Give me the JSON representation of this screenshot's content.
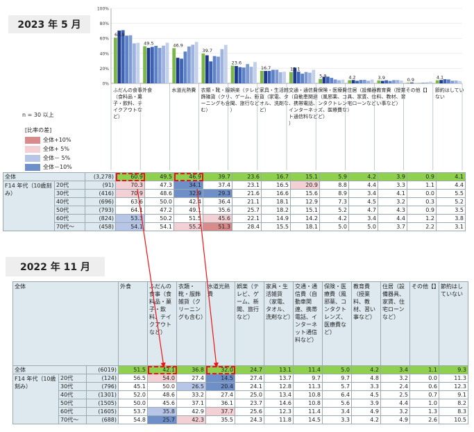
{
  "top": {
    "title": "2023 年 5 月",
    "note": "n = 30 以上",
    "legend_title": "[比率の差]",
    "legend": [
      {
        "label": "全体+10%",
        "color": "#d98a8a"
      },
      {
        "label": "全体+ 5%",
        "color": "#f2d0d4"
      },
      {
        "label": "全体－ 5%",
        "color": "#b7c6e6"
      },
      {
        "label": "全体－10%",
        "color": "#6f8fc8"
      }
    ]
  },
  "bottom": {
    "title": "2022 年 11 月"
  },
  "chart_data": [
    {
      "type": "bar",
      "title": "2023 年 5 月",
      "ylim": [
        0,
        100
      ],
      "yticks": [
        "0%",
        "20%",
        "40%",
        "60%",
        "80%",
        "100%"
      ],
      "categories": [
        "ふだんの食事（食料品・菓子・飲料、テイクアウトなど）",
        "外食",
        "水道光熱費",
        "衣類・靴・服飾雑貨（クリーニングも含む）",
        "娯楽（テレビ、ゲーム、新聞、旅行など）",
        "家具・生活雑貨（家電、タオル、洗剤など）",
        "交通・通信費（自動車関連、携帯電話、インターネット通信料など）",
        "保険・医療費（風邪薬、コンタクトレンズ、医療費など）",
        "住居（設備器具、家賃、住宅ローンなど）",
        "教育費（授業料、教材、習い事など）",
        "その他【】",
        "節約はしていない"
      ],
      "total_values": [
        60.9,
        49.5,
        46.9,
        39.7,
        23.6,
        16.7,
        15.1,
        5.9,
        4.2,
        3.9,
        0.9,
        4.1
      ],
      "series": [
        {
          "name": "全体",
          "values": [
            60.9,
            49.5,
            46.9,
            39.7,
            23.6,
            16.7,
            15.1,
            5.9,
            4.2,
            3.9,
            0.9,
            4.1
          ]
        },
        {
          "name": "20代",
          "values": [
            70.3,
            47.3,
            34.1,
            37.4,
            23.1,
            16.5,
            20.9,
            8.8,
            4.4,
            3.3,
            1.1,
            4.4
          ]
        },
        {
          "name": "30代",
          "values": [
            70.9,
            48.6,
            32.9,
            29.3,
            21.6,
            16.6,
            15.6,
            8.9,
            3.4,
            4.1,
            0.0,
            5.5
          ]
        },
        {
          "name": "40代",
          "values": [
            63.6,
            50.0,
            42.4,
            36.4,
            21.1,
            18.1,
            12.9,
            7.3,
            4.5,
            3.2,
            0.3,
            5.2
          ]
        },
        {
          "name": "50代",
          "values": [
            64.1,
            47.2,
            49.1,
            35.6,
            25.7,
            18.2,
            15.1,
            5.2,
            4.7,
            4.3,
            0.9,
            3.5
          ]
        },
        {
          "name": "60代",
          "values": [
            53.3,
            50.2,
            51.5,
            45.6,
            22.1,
            14.9,
            14.2,
            4.2,
            3.4,
            4.4,
            1.2,
            3.8
          ]
        },
        {
          "name": "70代～",
          "values": [
            54.1,
            54.1,
            55.2,
            51.3,
            28.4,
            15.5,
            18.1,
            5.0,
            5.0,
            3.7,
            2.2,
            3.1
          ]
        }
      ]
    }
  ],
  "table_2023": {
    "total_label": "全体",
    "total_row_label": "全体",
    "group_label": "F14 年代（10歳刻み）",
    "total_n": "(3,278)",
    "total_values": [
      "60.9",
      "49.5",
      "46.9",
      "39.7",
      "23.6",
      "16.7",
      "15.1",
      "5.9",
      "4.2",
      "3.9",
      "0.9",
      "4.1"
    ],
    "rows": [
      {
        "age": "20代",
        "n": "(91)",
        "values": [
          "70.3",
          "47.3",
          "34.1",
          "37.4",
          "23.1",
          "16.5",
          "20.9",
          "8.8",
          "4.4",
          "3.3",
          "1.1",
          "4.4"
        ]
      },
      {
        "age": "30代",
        "n": "(416)",
        "values": [
          "70.9",
          "48.6",
          "32.9",
          "29.3",
          "21.6",
          "16.6",
          "15.6",
          "8.9",
          "3.4",
          "4.1",
          "0.0",
          "5.5"
        ]
      },
      {
        "age": "40代",
        "n": "(696)",
        "values": [
          "63.6",
          "50.0",
          "42.4",
          "36.4",
          "21.1",
          "18.1",
          "12.9",
          "7.3",
          "4.5",
          "3.2",
          "0.3",
          "5.2"
        ]
      },
      {
        "age": "50代",
        "n": "(793)",
        "values": [
          "64.1",
          "47.2",
          "49.1",
          "35.6",
          "25.7",
          "18.2",
          "15.1",
          "5.2",
          "4.7",
          "4.3",
          "0.9",
          "3.5"
        ]
      },
      {
        "age": "60代",
        "n": "(824)",
        "values": [
          "53.3",
          "50.2",
          "51.5",
          "45.6",
          "22.1",
          "14.9",
          "14.2",
          "4.2",
          "3.4",
          "4.4",
          "1.2",
          "3.8"
        ]
      },
      {
        "age": "70代～",
        "n": "(458)",
        "values": [
          "54.1",
          "54.1",
          "55.2",
          "51.3",
          "28.4",
          "15.5",
          "18.1",
          "5.0",
          "5.0",
          "3.7",
          "2.2",
          "3.1"
        ]
      }
    ],
    "highlights": [
      [
        0,
        0,
        "#f2d0d4"
      ],
      [
        0,
        2,
        "#6f8fc8"
      ],
      [
        0,
        6,
        "#f2d0d4"
      ],
      [
        1,
        0,
        "#f2d0d4"
      ],
      [
        1,
        2,
        "#6f8fc8"
      ],
      [
        1,
        3,
        "#6f8fc8"
      ],
      [
        4,
        0,
        "#b7c6e6"
      ],
      [
        4,
        3,
        "#f2d0d4"
      ],
      [
        5,
        0,
        "#b7c6e6"
      ],
      [
        5,
        2,
        "#f2d0d4"
      ],
      [
        5,
        3,
        "#d98a8a"
      ]
    ]
  },
  "table_2022": {
    "total_label": "全体",
    "total_row_label": "全体",
    "group_label": "F14 年代（10歳刻み）",
    "headers": [
      "外食",
      "ふだんの食事（食料品・菓子・飲料、テイクアウトなど）",
      "衣類・靴・服飾雑貨（クリーニングも含む）",
      "水道光熱費",
      "娯楽（テレビ、ゲーム、新聞、旅行など）",
      "家具・生活雑貨（家電、タオル、洗剤など）",
      "交通・通信費（自動車関連、携帯電話、インターネット通信料など）",
      "保険・医療費（風邪薬、コンタクトレンズ、医療費など）",
      "教育費（授業料、教材、習い事など）",
      "住居（設備器具、家賃、住宅ローンなど）",
      "その他【】",
      "節約はしていない"
    ],
    "total_n": "(6019)",
    "total_values": [
      "51.5",
      "42.1",
      "36.8",
      "32.0",
      "24.7",
      "13.1",
      "11.4",
      "5.0",
      "4.2",
      "3.4",
      "1.1",
      "9.3"
    ],
    "rows": [
      {
        "age": "20代",
        "n": "(124)",
        "values": [
          "56.5",
          "54.0",
          "27.4",
          "14.5",
          "27.4",
          "13.7",
          "9.7",
          "9.7",
          "4.8",
          "3.2",
          "0.0",
          "11.3"
        ]
      },
      {
        "age": "30代",
        "n": "(796)",
        "values": [
          "45.1",
          "50.0",
          "26.5",
          "20.4",
          "24.1",
          "12.8",
          "11.3",
          "5.7",
          "3.3",
          "2.4",
          "0.6",
          "12.3"
        ]
      },
      {
        "age": "40代",
        "n": "(1301)",
        "values": [
          "52.0",
          "48.6",
          "33.2",
          "27.4",
          "25.0",
          "13.4",
          "10.8",
          "6.4",
          "4.5",
          "2.5",
          "0.7",
          "9.1"
        ]
      },
      {
        "age": "50代",
        "n": "(1505)",
        "values": [
          "50.0",
          "45.6",
          "37.1",
          "36.1",
          "23.7",
          "14.6",
          "10.8",
          "5.6",
          "3.9",
          "4.4",
          "1.0",
          "8.2"
        ]
      },
      {
        "age": "60代",
        "n": "(1605)",
        "values": [
          "53.7",
          "35.8",
          "42.9",
          "37.7",
          "25.6",
          "12.3",
          "11.4",
          "3.4",
          "4.9",
          "3.2",
          "1.3",
          "8.3"
        ]
      },
      {
        "age": "70代～",
        "n": "(688)",
        "values": [
          "54.8",
          "25.7",
          "42.3",
          "35.5",
          "24.3",
          "11.8",
          "14.5",
          "3.3",
          "4.2",
          "4.9",
          "2.6",
          "10.5"
        ]
      }
    ],
    "highlights": [
      [
        0,
        1,
        "#f2d0d4"
      ],
      [
        0,
        3,
        "#6f8fc8"
      ],
      [
        1,
        2,
        "#b7c6e6"
      ],
      [
        1,
        3,
        "#6f8fc8"
      ],
      [
        4,
        1,
        "#b7c6e6"
      ],
      [
        4,
        3,
        "#f2d0d4"
      ],
      [
        5,
        1,
        "#6f8fc8"
      ],
      [
        5,
        2,
        "#f2d0d4"
      ]
    ]
  }
}
